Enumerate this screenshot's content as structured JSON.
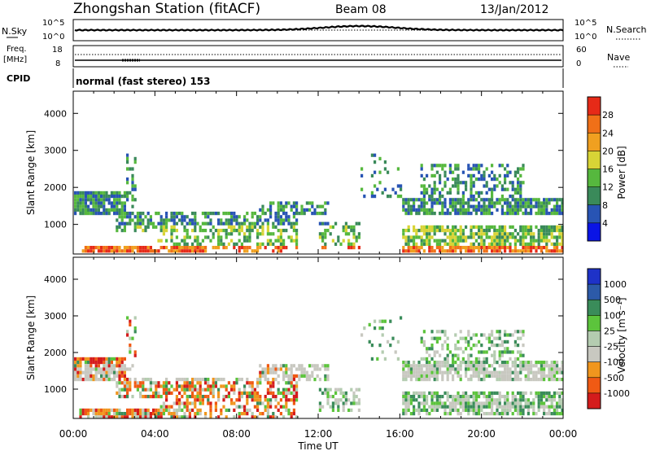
{
  "header": {
    "station": "Zhongshan Station (fitACF)",
    "beam": "Beam 08",
    "date": "13/Jan/2012"
  },
  "top_panels": {
    "nsky_label": "N.Sky",
    "nsky_ticks": [
      "10^5",
      "10^0"
    ],
    "nsearch_label": "N.Search",
    "nsearch_ticks": [
      "10^5",
      "10^0"
    ],
    "freq_label_1": "Freq.",
    "freq_label_2": "[MHz]",
    "freq_ticks": [
      "18",
      "8"
    ],
    "nave_label": "Nave",
    "nave_ticks": [
      "60",
      "0"
    ],
    "cpid_label": "CPID",
    "cpid_text": "normal (fast stereo) 153"
  },
  "colors": {
    "power": [
      "#0a14e6",
      "#2854b4",
      "#3a8a5a",
      "#56b83e",
      "#d8d436",
      "#f0a020",
      "#f07018",
      "#e62a18"
    ],
    "velocity": [
      "#d41c1c",
      "#f05a14",
      "#f0961e",
      "#c8c8c0",
      "#b4ccb0",
      "#5cc43c",
      "#3a8c5a",
      "#2c5aa8",
      "#1e32c8"
    ]
  },
  "chart_data": [
    {
      "type": "heatmap",
      "title": "Power",
      "xlabel": "Time UT",
      "ylabel": "Slant Range [km]",
      "colorbar_label": "Power [dB]",
      "x_ticks": [
        "00:00",
        "04:00",
        "08:00",
        "12:00",
        "16:00",
        "20:00",
        "00:00"
      ],
      "y_ticks": [
        "1000",
        "2000",
        "3000",
        "4000"
      ],
      "ylim": [
        200,
        4600
      ],
      "colorbar_ticks": [
        "4",
        "8",
        "12",
        "16",
        "20",
        "24",
        "28"
      ],
      "colorbar_range": [
        0,
        32
      ],
      "grid": false
    },
    {
      "type": "heatmap",
      "title": "Velocity",
      "xlabel": "Time UT",
      "ylabel": "Slant Range [km]",
      "colorbar_label": "Velocity [m s⁻¹]",
      "x_ticks": [
        "00:00",
        "04:00",
        "08:00",
        "12:00",
        "16:00",
        "20:00",
        "00:00"
      ],
      "y_ticks": [
        "1000",
        "2000",
        "3000",
        "4000"
      ],
      "ylim": [
        200,
        4600
      ],
      "colorbar_ticks": [
        "1000",
        "500",
        "100",
        "25",
        "-25",
        "-100",
        "-500",
        "-1000"
      ],
      "grid": false
    }
  ]
}
